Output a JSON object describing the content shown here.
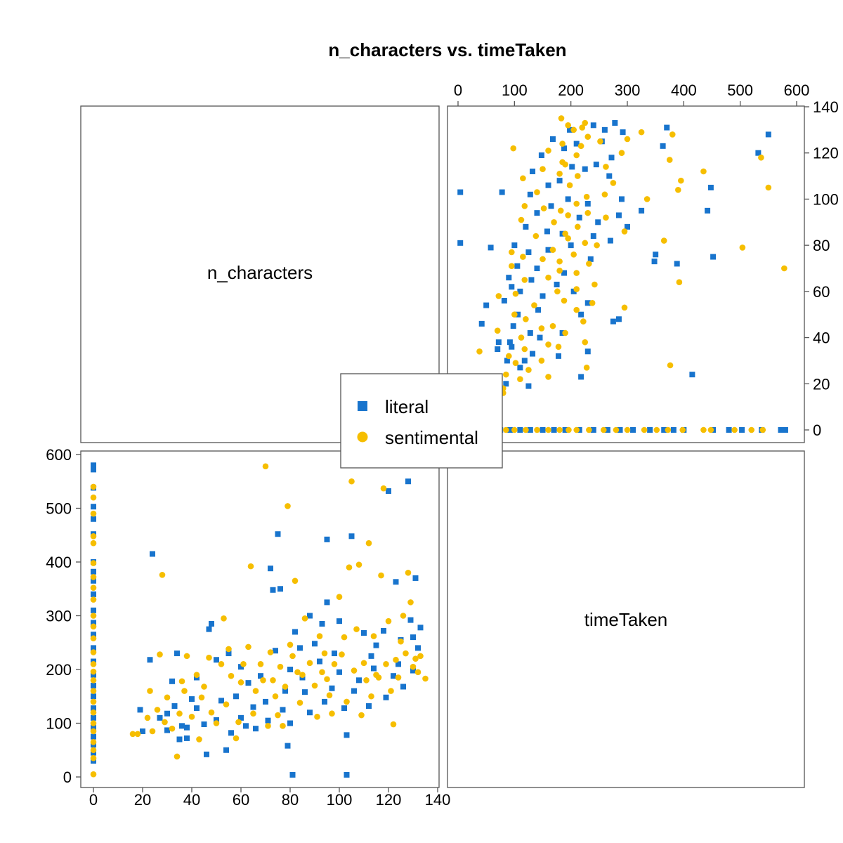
{
  "title": "n_characters vs. timeTaken",
  "chart_data": {
    "type": "scatter",
    "title": "n_characters vs. timeTaken",
    "layout": "pairs-plot",
    "variables": [
      "n_characters",
      "timeTaken"
    ],
    "axes": {
      "n_characters": {
        "range": [
          0,
          140
        ],
        "ticks": [
          "0",
          "20",
          "40",
          "60",
          "80",
          "100",
          "120",
          "140"
        ]
      },
      "timeTaken": {
        "range": [
          0,
          600
        ],
        "ticks": [
          "0",
          "100",
          "200",
          "300",
          "400",
          "500",
          "600"
        ]
      }
    },
    "grid": false,
    "legend": {
      "position": "center",
      "entries": [
        "literal",
        "sentimental"
      ]
    },
    "colors": {
      "literal": "#1874cd",
      "sentimental": "#f6be00"
    },
    "series": [
      {
        "name": "literal",
        "marker": "square",
        "points": [
          [
            0,
            580
          ],
          [
            0,
            572
          ],
          [
            0,
            538
          ],
          [
            0,
            503
          ],
          [
            0,
            480
          ],
          [
            0,
            452
          ],
          [
            0,
            400
          ],
          [
            0,
            382
          ],
          [
            0,
            365
          ],
          [
            0,
            340
          ],
          [
            0,
            310
          ],
          [
            0,
            287
          ],
          [
            0,
            265
          ],
          [
            0,
            240
          ],
          [
            0,
            215
          ],
          [
            0,
            190
          ],
          [
            0,
            170
          ],
          [
            0,
            150
          ],
          [
            0,
            128
          ],
          [
            0,
            110
          ],
          [
            0,
            92
          ],
          [
            0,
            75
          ],
          [
            0,
            60
          ],
          [
            0,
            45
          ],
          [
            0,
            30
          ],
          [
            19,
            125
          ],
          [
            20,
            85
          ],
          [
            23,
            218
          ],
          [
            24,
            415
          ],
          [
            27,
            110
          ],
          [
            30,
            118
          ],
          [
            30,
            87
          ],
          [
            32,
            178
          ],
          [
            33,
            132
          ],
          [
            34,
            230
          ],
          [
            35,
            70
          ],
          [
            36,
            95
          ],
          [
            38,
            92
          ],
          [
            38,
            72
          ],
          [
            40,
            145
          ],
          [
            42,
            185
          ],
          [
            42,
            128
          ],
          [
            45,
            98
          ],
          [
            46,
            42
          ],
          [
            47,
            275
          ],
          [
            48,
            285
          ],
          [
            50,
            218
          ],
          [
            50,
            106
          ],
          [
            52,
            142
          ],
          [
            54,
            50
          ],
          [
            55,
            230
          ],
          [
            56,
            82
          ],
          [
            58,
            150
          ],
          [
            60,
            110
          ],
          [
            60,
            205
          ],
          [
            62,
            95
          ],
          [
            63,
            175
          ],
          [
            65,
            130
          ],
          [
            66,
            90
          ],
          [
            68,
            188
          ],
          [
            70,
            140
          ],
          [
            71,
            105
          ],
          [
            72,
            388
          ],
          [
            73,
            348
          ],
          [
            74,
            235
          ],
          [
            75,
            452
          ],
          [
            76,
            350
          ],
          [
            77,
            125
          ],
          [
            78,
            160
          ],
          [
            79,
            58
          ],
          [
            80,
            100
          ],
          [
            80,
            200
          ],
          [
            81,
            4
          ],
          [
            82,
            270
          ],
          [
            84,
            240
          ],
          [
            85,
            185
          ],
          [
            86,
            158
          ],
          [
            88,
            120
          ],
          [
            88,
            300
          ],
          [
            90,
            248
          ],
          [
            92,
            215
          ],
          [
            93,
            285
          ],
          [
            94,
            140
          ],
          [
            95,
            442
          ],
          [
            95,
            325
          ],
          [
            97,
            165
          ],
          [
            98,
            230
          ],
          [
            100,
            290
          ],
          [
            100,
            195
          ],
          [
            102,
            128
          ],
          [
            103,
            4
          ],
          [
            103,
            78
          ],
          [
            105,
            448
          ],
          [
            106,
            160
          ],
          [
            108,
            180
          ],
          [
            110,
            268
          ],
          [
            112,
            132
          ],
          [
            113,
            225
          ],
          [
            114,
            202
          ],
          [
            115,
            245
          ],
          [
            118,
            272
          ],
          [
            119,
            148
          ],
          [
            120,
            532
          ],
          [
            122,
            188
          ],
          [
            123,
            363
          ],
          [
            124,
            210
          ],
          [
            125,
            255
          ],
          [
            126,
            168
          ],
          [
            128,
            550
          ],
          [
            129,
            292
          ],
          [
            130,
            198
          ],
          [
            130,
            260
          ],
          [
            131,
            370
          ],
          [
            132,
            240
          ],
          [
            133,
            278
          ]
        ]
      },
      {
        "name": "sentimental",
        "marker": "circle",
        "points": [
          [
            0,
            540
          ],
          [
            0,
            520
          ],
          [
            0,
            490
          ],
          [
            0,
            448
          ],
          [
            0,
            435
          ],
          [
            0,
            398
          ],
          [
            0,
            372
          ],
          [
            0,
            352
          ],
          [
            0,
            330
          ],
          [
            0,
            300
          ],
          [
            0,
            280
          ],
          [
            0,
            258
          ],
          [
            0,
            232
          ],
          [
            0,
            210
          ],
          [
            0,
            196
          ],
          [
            0,
            180
          ],
          [
            0,
            160
          ],
          [
            0,
            140
          ],
          [
            0,
            120
          ],
          [
            0,
            100
          ],
          [
            0,
            85
          ],
          [
            0,
            65
          ],
          [
            0,
            50
          ],
          [
            0,
            35
          ],
          [
            0,
            5
          ],
          [
            16,
            80
          ],
          [
            18,
            80
          ],
          [
            22,
            110
          ],
          [
            23,
            160
          ],
          [
            24,
            85
          ],
          [
            26,
            125
          ],
          [
            27,
            228
          ],
          [
            28,
            376
          ],
          [
            29,
            102
          ],
          [
            30,
            148
          ],
          [
            32,
            90
          ],
          [
            34,
            38
          ],
          [
            35,
            118
          ],
          [
            36,
            178
          ],
          [
            37,
            160
          ],
          [
            38,
            225
          ],
          [
            40,
            112
          ],
          [
            42,
            190
          ],
          [
            43,
            70
          ],
          [
            44,
            148
          ],
          [
            45,
            168
          ],
          [
            47,
            222
          ],
          [
            48,
            120
          ],
          [
            50,
            100
          ],
          [
            52,
            210
          ],
          [
            53,
            295
          ],
          [
            54,
            135
          ],
          [
            55,
            238
          ],
          [
            56,
            188
          ],
          [
            58,
            72
          ],
          [
            59,
            102
          ],
          [
            60,
            176
          ],
          [
            61,
            210
          ],
          [
            63,
            242
          ],
          [
            64,
            392
          ],
          [
            65,
            118
          ],
          [
            66,
            160
          ],
          [
            68,
            210
          ],
          [
            69,
            180
          ],
          [
            70,
            578
          ],
          [
            71,
            95
          ],
          [
            72,
            232
          ],
          [
            73,
            180
          ],
          [
            74,
            150
          ],
          [
            75,
            115
          ],
          [
            76,
            205
          ],
          [
            77,
            95
          ],
          [
            78,
            168
          ],
          [
            79,
            504
          ],
          [
            80,
            246
          ],
          [
            81,
            225
          ],
          [
            82,
            365
          ],
          [
            83,
            195
          ],
          [
            84,
            138
          ],
          [
            85,
            190
          ],
          [
            86,
            295
          ],
          [
            88,
            212
          ],
          [
            90,
            170
          ],
          [
            91,
            112
          ],
          [
            92,
            262
          ],
          [
            93,
            195
          ],
          [
            94,
            230
          ],
          [
            95,
            182
          ],
          [
            96,
            152
          ],
          [
            97,
            118
          ],
          [
            98,
            210
          ],
          [
            100,
            335
          ],
          [
            101,
            228
          ],
          [
            102,
            260
          ],
          [
            103,
            140
          ],
          [
            104,
            390
          ],
          [
            105,
            550
          ],
          [
            106,
            198
          ],
          [
            107,
            275
          ],
          [
            108,
            395
          ],
          [
            109,
            115
          ],
          [
            110,
            212
          ],
          [
            111,
            180
          ],
          [
            112,
            435
          ],
          [
            113,
            150
          ],
          [
            114,
            262
          ],
          [
            115,
            190
          ],
          [
            116,
            185
          ],
          [
            117,
            375
          ],
          [
            118,
            537
          ],
          [
            119,
            210
          ],
          [
            120,
            290
          ],
          [
            121,
            160
          ],
          [
            122,
            98
          ],
          [
            123,
            218
          ],
          [
            124,
            185
          ],
          [
            125,
            252
          ],
          [
            126,
            300
          ],
          [
            127,
            230
          ],
          [
            128,
            380
          ],
          [
            129,
            325
          ],
          [
            130,
            205
          ],
          [
            131,
            220
          ],
          [
            132,
            195
          ],
          [
            133,
            225
          ],
          [
            135,
            183
          ]
        ]
      }
    ]
  }
}
